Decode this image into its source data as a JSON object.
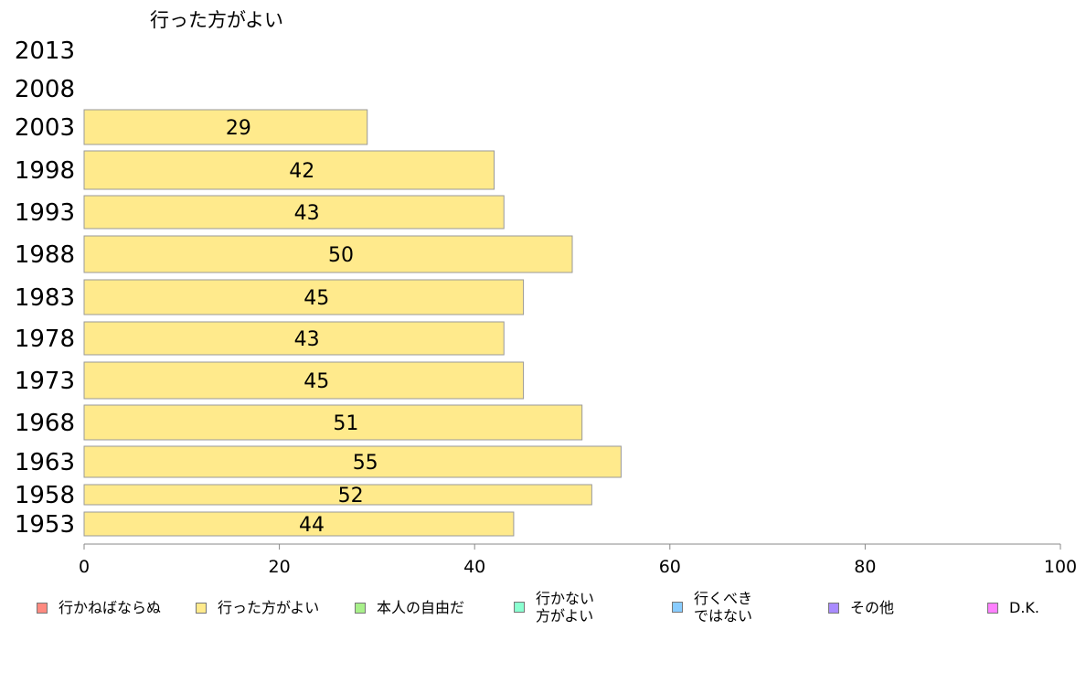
{
  "chart_data": {
    "type": "bar",
    "orientation": "horizontal",
    "title": "行った方がよい",
    "categories": [
      "2013",
      "2008",
      "2003",
      "1998",
      "1993",
      "1988",
      "1983",
      "1978",
      "1973",
      "1968",
      "1963",
      "1958",
      "1953"
    ],
    "values": [
      null,
      null,
      29,
      42,
      43,
      50,
      45,
      43,
      45,
      51,
      55,
      52,
      44
    ],
    "data_labels": [
      "",
      "",
      "29",
      "42",
      "43",
      "50",
      "45",
      "43",
      "45",
      "51",
      "55",
      "52",
      "44"
    ],
    "xlim": [
      0,
      100
    ],
    "x_ticks": [
      "0",
      "20",
      "40",
      "60",
      "80",
      "100"
    ],
    "bar_color": "#ffea8c",
    "bar_edge_color": "#999999",
    "grid": false,
    "legend_position": "bottom",
    "legend": [
      {
        "label": "行かねばならぬ",
        "color": "#ff8a80"
      },
      {
        "label": "行った方がよい",
        "color": "#ffea8c"
      },
      {
        "label": "本人の自由だ",
        "color": "#a8f08a"
      },
      {
        "label": "行かない\n方がよい",
        "color": "#8affd0"
      },
      {
        "label": "行くべき\nではない",
        "color": "#88ccff"
      },
      {
        "label": "その他",
        "color": "#a98bff"
      },
      {
        "label": "D.K.",
        "color": "#ff80ff"
      }
    ]
  }
}
